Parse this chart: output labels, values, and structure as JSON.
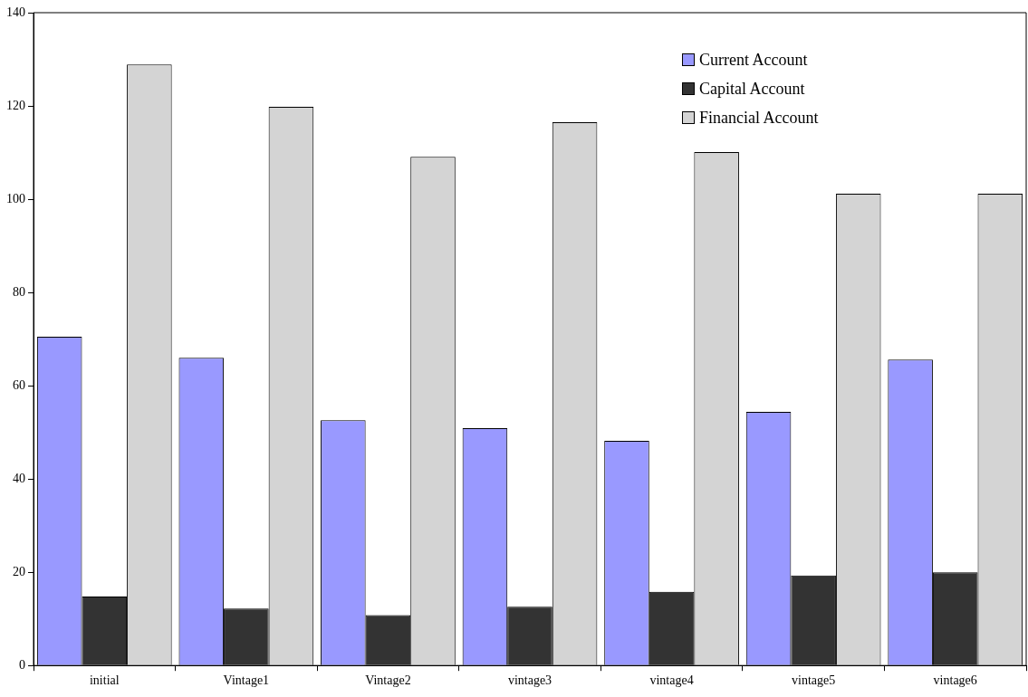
{
  "chart_data": {
    "type": "bar",
    "categories": [
      "initial",
      "Vintage1",
      "Vintage2",
      "vintage3",
      "vintage4",
      "vintage5",
      "vintage6"
    ],
    "series": [
      {
        "name": "Current Account",
        "color": "#9999ff",
        "values": [
          70.5,
          66.0,
          52.6,
          50.9,
          48.2,
          54.4,
          65.6
        ]
      },
      {
        "name": "Capital Account",
        "color": "#333333",
        "values": [
          14.8,
          12.2,
          10.8,
          12.6,
          15.8,
          19.3,
          20.0
        ]
      },
      {
        "name": "Financial Account",
        "color": "#d4d4d4",
        "values": [
          128.9,
          119.8,
          109.1,
          116.5,
          110.1,
          101.2,
          101.2
        ]
      }
    ],
    "ylim": [
      0,
      140
    ],
    "yticks": [
      0,
      20,
      40,
      60,
      80,
      100,
      120,
      140
    ],
    "grid": false,
    "legend": "top right"
  }
}
